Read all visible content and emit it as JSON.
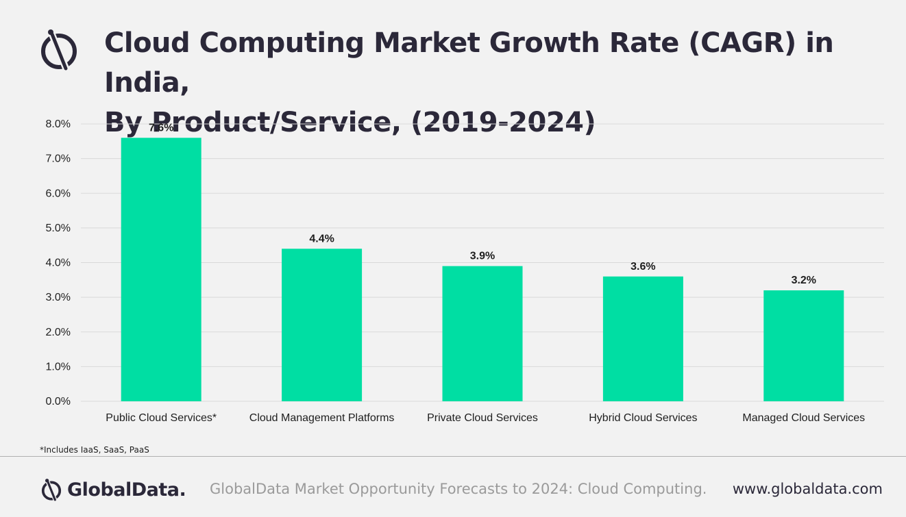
{
  "header": {
    "title_line1": "Cloud Computing Market Growth Rate (CAGR) in India,",
    "title_line2": "By Product/Service, (2019-2024)"
  },
  "chart_data": {
    "type": "bar",
    "title": "Cloud Computing Market Growth Rate (CAGR) in India, By Product/Service, (2019-2024)",
    "categories": [
      "Public Cloud Services*",
      "Cloud Management Platforms",
      "Private Cloud Services",
      "Hybrid Cloud Services",
      "Managed Cloud Services"
    ],
    "values": [
      7.6,
      4.4,
      3.9,
      3.6,
      3.2
    ],
    "value_labels": [
      "7.6%",
      "4.4%",
      "3.9%",
      "3.6%",
      "3.2%"
    ],
    "yticks": [
      0,
      1,
      2,
      3,
      4,
      5,
      6,
      7,
      8
    ],
    "ytick_labels": [
      "0.0%",
      "1.0%",
      "2.0%",
      "3.0%",
      "4.0%",
      "5.0%",
      "6.0%",
      "7.0%",
      "8.0%"
    ],
    "ylim": [
      0,
      8
    ],
    "xlabel": "",
    "ylabel": "",
    "grid": true,
    "legend": "none",
    "bar_color": "#00dea3"
  },
  "footnote": "*Includes IaaS, SaaS, PaaS",
  "footer": {
    "brand": "GlobalData.",
    "source": "GlobalData Market Opportunity Forecasts to 2024: Cloud Computing.",
    "website": "www.globaldata.com"
  },
  "colors": {
    "accent": "#00dea3",
    "text_dark": "#2b2839",
    "background": "#f2f2f2",
    "gridline": "#d9d9d9"
  },
  "icons": [
    "globaldata-logo-icon"
  ]
}
